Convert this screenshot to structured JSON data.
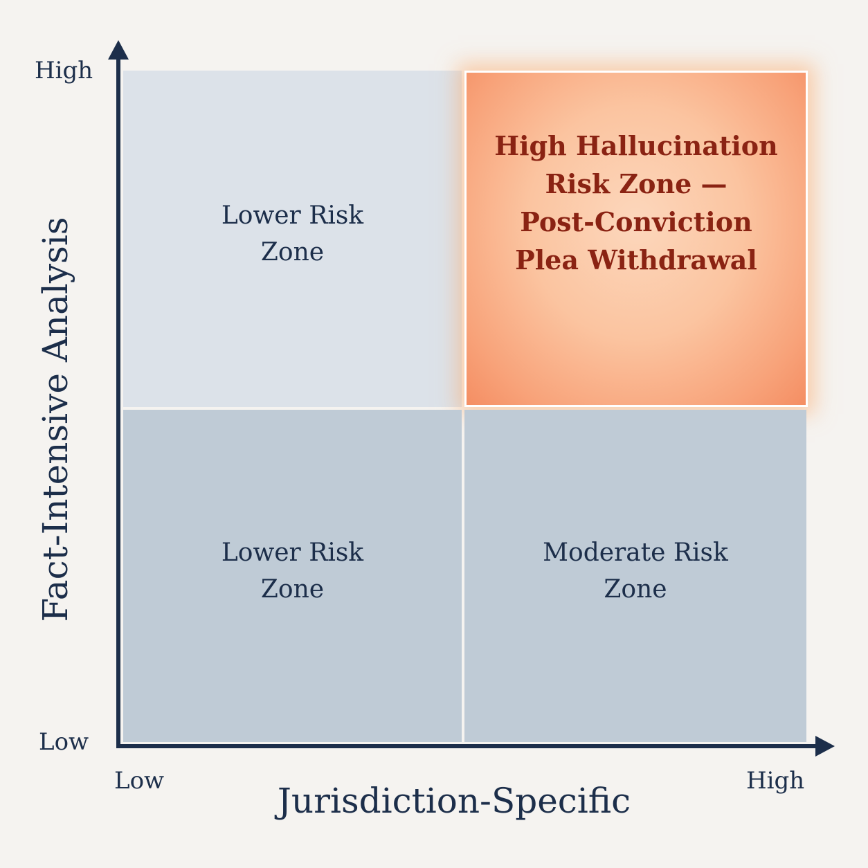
{
  "axes": {
    "x_title": "Jurisdiction-Specific",
    "y_title": "Fact-Intensive Analysis",
    "x_low": "Low",
    "x_high": "High",
    "y_low": "Low",
    "y_high": "High"
  },
  "quadrants": {
    "top_left": {
      "lines": [
        "Lower Risk",
        "Zone"
      ]
    },
    "top_right": {
      "lines": [
        "High Hallucination",
        "Risk Zone —",
        "Post-Conviction",
        "Plea Withdrawal"
      ]
    },
    "bottom_left": {
      "lines": [
        "Lower Risk",
        "Zone"
      ]
    },
    "bottom_right": {
      "lines": [
        "Moderate Risk",
        "Zone"
      ]
    }
  },
  "colors": {
    "axis": "#1c2e4a",
    "low_risk_top": "#dce2e9",
    "low_risk_bottom": "#bfcbd6",
    "high_risk_text": "#8a2313",
    "high_risk_fill": "#f8a37a"
  }
}
